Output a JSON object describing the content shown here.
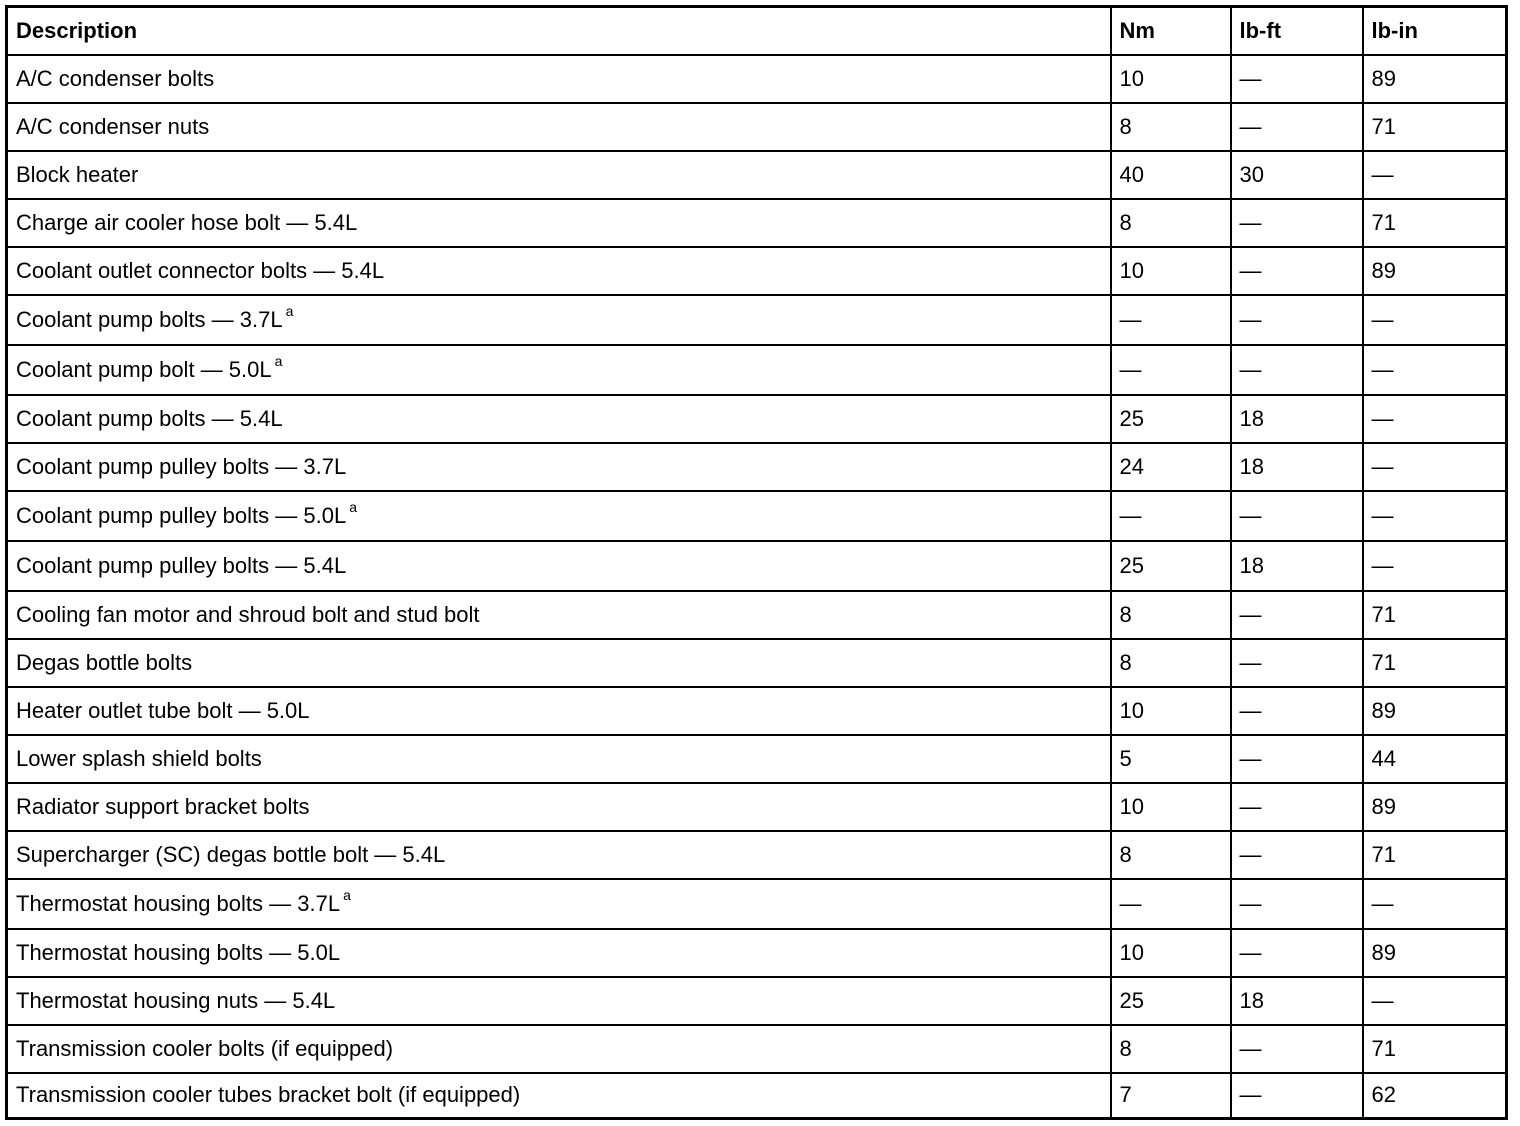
{
  "headers": [
    "Description",
    "Nm",
    "lb-ft",
    "lb-in"
  ],
  "rows": [
    {
      "description": "A/C condenser bolts",
      "sup": "",
      "nm": "10",
      "lbft": "—",
      "lbin": "89"
    },
    {
      "description": "A/C condenser nuts",
      "sup": "",
      "nm": "8",
      "lbft": "—",
      "lbin": "71"
    },
    {
      "description": "Block heater",
      "sup": "",
      "nm": "40",
      "lbft": "30",
      "lbin": "—"
    },
    {
      "description": "Charge air cooler hose bolt — 5.4L",
      "sup": "",
      "nm": "8",
      "lbft": "—",
      "lbin": "71"
    },
    {
      "description": "Coolant outlet connector bolts — 5.4L",
      "sup": "",
      "nm": "10",
      "lbft": "—",
      "lbin": "89"
    },
    {
      "description": "Coolant pump bolts — 3.7L",
      "sup": "a",
      "nm": "—",
      "lbft": "—",
      "lbin": "—"
    },
    {
      "description": "Coolant pump bolt — 5.0L",
      "sup": "a",
      "nm": "—",
      "lbft": "—",
      "lbin": "—"
    },
    {
      "description": "Coolant pump bolts — 5.4L",
      "sup": "",
      "nm": "25",
      "lbft": "18",
      "lbin": "—"
    },
    {
      "description": "Coolant pump pulley bolts — 3.7L",
      "sup": "",
      "nm": "24",
      "lbft": "18",
      "lbin": "—"
    },
    {
      "description": "Coolant pump pulley bolts — 5.0L",
      "sup": "a",
      "nm": "—",
      "lbft": "—",
      "lbin": "—"
    },
    {
      "description": "Coolant pump pulley bolts — 5.4L",
      "sup": "",
      "nm": "25",
      "lbft": "18",
      "lbin": "—"
    },
    {
      "description": "Cooling fan motor and shroud bolt and stud bolt",
      "sup": "",
      "nm": "8",
      "lbft": "—",
      "lbin": "71"
    },
    {
      "description": "Degas bottle bolts",
      "sup": "",
      "nm": "8",
      "lbft": "—",
      "lbin": "71"
    },
    {
      "description": "Heater outlet tube bolt — 5.0L",
      "sup": "",
      "nm": "10",
      "lbft": "—",
      "lbin": "89"
    },
    {
      "description": "Lower splash shield bolts",
      "sup": "",
      "nm": "5",
      "lbft": "—",
      "lbin": "44"
    },
    {
      "description": "Radiator support bracket bolts",
      "sup": "",
      "nm": "10",
      "lbft": "—",
      "lbin": "89"
    },
    {
      "description": "Supercharger (SC) degas bottle bolt — 5.4L",
      "sup": "",
      "nm": "8",
      "lbft": "—",
      "lbin": "71"
    },
    {
      "description": "Thermostat housing bolts — 3.7L",
      "sup": "a",
      "nm": "—",
      "lbft": "—",
      "lbin": "—"
    },
    {
      "description": "Thermostat housing bolts — 5.0L",
      "sup": "",
      "nm": "10",
      "lbft": "—",
      "lbin": "89"
    },
    {
      "description": "Thermostat housing nuts — 5.4L",
      "sup": "",
      "nm": "25",
      "lbft": "18",
      "lbin": "—"
    },
    {
      "description": "Transmission cooler bolts (if equipped)",
      "sup": "",
      "nm": "8",
      "lbft": "—",
      "lbin": "71"
    },
    {
      "description": "Transmission cooler tubes bracket bolt (if equipped)",
      "sup": "",
      "nm": "7",
      "lbft": "—",
      "lbin": "62"
    }
  ]
}
